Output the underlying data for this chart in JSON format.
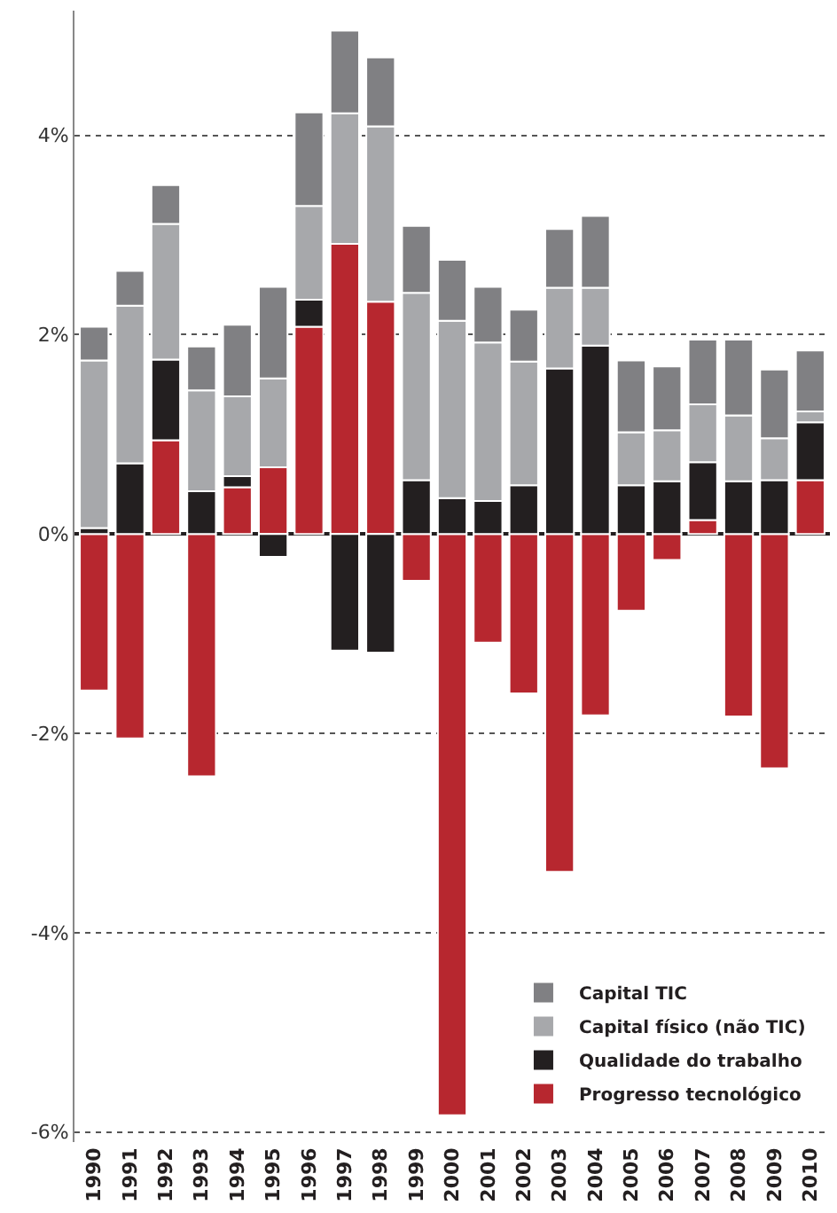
{
  "chart_data": {
    "type": "bar",
    "stacked": true,
    "categories": [
      "1990",
      "1991",
      "1992",
      "1993",
      "1994",
      "1995",
      "1996",
      "1997",
      "1998",
      "1999",
      "2000",
      "2001",
      "2002",
      "2003",
      "2004",
      "2005",
      "2006",
      "2007",
      "2008",
      "2009",
      "2010"
    ],
    "series": [
      {
        "name": "Progresso tecnológico",
        "color": "#b7272f",
        "values": [
          -1.57,
          -2.05,
          0.94,
          -2.43,
          0.47,
          0.67,
          2.08,
          2.91,
          2.33,
          -0.47,
          -5.83,
          -1.09,
          -1.6,
          -3.39,
          -1.82,
          -0.77,
          -0.26,
          0.14,
          -1.83,
          -2.35,
          0.54
        ]
      },
      {
        "name": "Qualidade do trabalho",
        "color": "#231f20",
        "values": [
          0.06,
          0.71,
          0.81,
          0.43,
          0.11,
          -0.23,
          0.27,
          -1.17,
          -1.19,
          0.54,
          0.36,
          0.33,
          0.49,
          1.66,
          1.89,
          0.49,
          0.53,
          0.58,
          0.53,
          0.54,
          0.58
        ]
      },
      {
        "name": "Capital físico (não TIC)",
        "color": "#a7a8ab",
        "values": [
          1.68,
          1.58,
          1.36,
          1.01,
          0.8,
          0.89,
          0.94,
          1.31,
          1.76,
          1.88,
          1.78,
          1.59,
          1.24,
          0.81,
          0.58,
          0.53,
          0.51,
          0.58,
          0.66,
          0.42,
          0.11
        ]
      },
      {
        "name": "Capital TIC",
        "color": "#808083",
        "values": [
          0.34,
          0.35,
          0.39,
          0.44,
          0.72,
          0.92,
          0.94,
          0.83,
          0.69,
          0.67,
          0.61,
          0.56,
          0.52,
          0.59,
          0.72,
          0.72,
          0.64,
          0.65,
          0.76,
          0.69,
          0.61
        ]
      }
    ],
    "ylim": [
      -6.1,
      5.25
    ],
    "yticks": [
      {
        "value": -6,
        "label": "-6%"
      },
      {
        "value": -4,
        "label": "-4%"
      },
      {
        "value": -2,
        "label": "-2%"
      },
      {
        "value": 0,
        "label": "0%"
      },
      {
        "value": 2,
        "label": "2%"
      },
      {
        "value": 4,
        "label": "4%"
      }
    ],
    "grid": "y",
    "legend": "bottom right"
  }
}
